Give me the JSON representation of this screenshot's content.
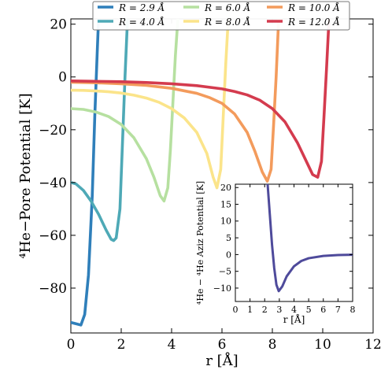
{
  "chart_data": [
    {
      "type": "line",
      "title": "",
      "xlabel": "r [Å]",
      "ylabel": "⁴He−Pore Potential [K]",
      "xlim": [
        0,
        12
      ],
      "ylim": [
        -97,
        22
      ],
      "xticks": [
        "0",
        "2",
        "4",
        "6",
        "8",
        "10",
        "12"
      ],
      "yticks": [
        "20",
        "0",
        "−20",
        "−40",
        "−60",
        "−80"
      ],
      "grid": false,
      "legend": "top",
      "legend_entries": [
        "R = 2.9 Å",
        "R = 4.0 Å",
        "R = 6.0 Å",
        "R = 8.0 Å",
        "R = 10.0 Å",
        "R = 12.0 Å"
      ],
      "series": [
        {
          "name": "R = 2.9 Å",
          "color": "#2f7fba",
          "x": [
            0,
            0.2,
            0.4,
            0.55,
            0.7,
            0.85,
            0.95,
            1.05,
            1.1,
            1.15
          ],
          "y": [
            -93,
            -93.5,
            -94,
            -90,
            -75,
            -45,
            -15,
            10,
            22,
            22
          ]
        },
        {
          "name": "R = 4.0 Å",
          "color": "#4ea9b6",
          "x": [
            0,
            0.2,
            0.5,
            0.8,
            1.1,
            1.4,
            1.6,
            1.7,
            1.8,
            1.95,
            2.05,
            2.15,
            2.25
          ],
          "y": [
            -40,
            -40.5,
            -43,
            -47,
            -52,
            -58,
            -61.5,
            -62,
            -61,
            -50,
            -25,
            0,
            22
          ]
        },
        {
          "name": "R = 6.0 Å",
          "color": "#b6e0a0",
          "x": [
            0,
            0.5,
            1,
            1.5,
            2,
            2.5,
            3,
            3.3,
            3.55,
            3.7,
            3.85,
            3.95,
            4.05,
            4.15,
            4.25
          ],
          "y": [
            -12,
            -12.3,
            -13.3,
            -15,
            -18,
            -23,
            -31,
            -38,
            -45,
            -47,
            -42,
            -28,
            -10,
            8,
            22
          ]
        },
        {
          "name": "R = 8.0 Å",
          "color": "#fbe48a",
          "x": [
            0,
            0.5,
            1,
            1.5,
            2,
            2.5,
            3,
            3.5,
            4,
            4.5,
            5,
            5.4,
            5.65,
            5.8,
            5.95,
            6.05,
            6.15,
            6.25
          ],
          "y": [
            -5,
            -5.1,
            -5.3,
            -5.6,
            -6.1,
            -6.9,
            -8,
            -9.6,
            -12,
            -15.5,
            -21,
            -29,
            -38,
            -42,
            -35,
            -15,
            5,
            22
          ]
        },
        {
          "name": "R = 10.0 Å",
          "color": "#f39b5c",
          "x": [
            0,
            1,
            2,
            3,
            4,
            5,
            5.5,
            6,
            6.5,
            7,
            7.3,
            7.6,
            7.8,
            7.95,
            8.05,
            8.15,
            8.25
          ],
          "y": [
            -2,
            -2.2,
            -2.6,
            -3.2,
            -4.3,
            -6.2,
            -7.8,
            -10,
            -14,
            -21,
            -28,
            -36,
            -39.5,
            -35,
            -18,
            0,
            22
          ]
        },
        {
          "name": "R = 12.0 Å",
          "color": "#d43b4e",
          "x": [
            0,
            2,
            3,
            4,
            5,
            6,
            6.5,
            7,
            7.5,
            8,
            8.5,
            9,
            9.3,
            9.6,
            9.8,
            9.95,
            10.05,
            10.15,
            10.25
          ],
          "y": [
            -1.5,
            -1.8,
            -2.1,
            -2.6,
            -3.3,
            -4.5,
            -5.5,
            -6.8,
            -8.8,
            -12,
            -17,
            -25,
            -31,
            -37,
            -38,
            -32,
            -15,
            3,
            22
          ]
        }
      ]
    },
    {
      "type": "line",
      "title": "",
      "xlabel": "r [Å]",
      "ylabel": "⁴He − ⁴He Aziz Potential [K]",
      "xlim": [
        0,
        8
      ],
      "ylim": [
        -14,
        21
      ],
      "xticks": [
        "0",
        "1",
        "2",
        "3",
        "4",
        "5",
        "6",
        "7",
        "8"
      ],
      "yticks": [
        "20",
        "15",
        "10",
        "5",
        "0",
        "−5",
        "−10"
      ],
      "grid": false,
      "series": [
        {
          "name": "",
          "color": "#4e4a9b",
          "x": [
            2.2,
            2.35,
            2.5,
            2.65,
            2.8,
            2.96,
            3.2,
            3.5,
            4,
            4.5,
            5,
            6,
            7,
            8
          ],
          "y": [
            21,
            12,
            3,
            -4,
            -9,
            -10.9,
            -9.5,
            -6.5,
            -3.5,
            -1.9,
            -1.1,
            -0.4,
            -0.15,
            -0.05
          ]
        }
      ]
    }
  ]
}
